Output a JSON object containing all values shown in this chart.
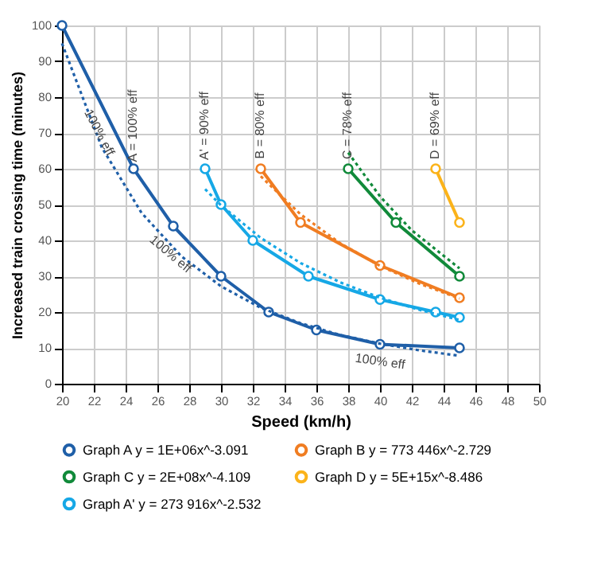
{
  "chart_data": {
    "type": "line",
    "xlabel": "Speed (km/h)",
    "ylabel": "Increased train crossing time (minutes)",
    "xlim": [
      20,
      50
    ],
    "xticks": [
      20,
      22,
      24,
      26,
      28,
      30,
      32,
      34,
      36,
      38,
      40,
      42,
      44,
      46,
      48,
      50
    ],
    "ylim": [
      0,
      100
    ],
    "yticks": [
      0,
      10,
      20,
      30,
      40,
      50,
      60,
      70,
      80,
      90,
      100
    ],
    "grid": true,
    "legend": "bottom",
    "marker": "circle",
    "line_style": "solid",
    "series": [
      {
        "name": "Graph A  y = 1E+06x^-3.091",
        "color": "#1f5fa8",
        "x": [
          20,
          24.5,
          27,
          30,
          33,
          36,
          40,
          45
        ],
        "values": [
          100,
          60,
          44,
          30,
          20,
          15,
          11,
          10
        ]
      },
      {
        "name": "Graph B  y = 773 446x^-2.729",
        "color": "#f07d22",
        "x": [
          32.5,
          35,
          40,
          45
        ],
        "values": [
          60,
          45,
          33,
          24
        ]
      },
      {
        "name": "Graph C  y = 2E+08x^-4.109",
        "color": "#118a3a",
        "x": [
          38,
          41,
          45
        ],
        "values": [
          60,
          45,
          30
        ]
      },
      {
        "name": "Graph D  y = 5E+15x^-8.486",
        "color": "#fbb31a",
        "x": [
          43.5,
          45
        ],
        "values": [
          60,
          45
        ]
      },
      {
        "name": "Graph A'  y = 273 916x^-2.532",
        "color": "#16a8e6",
        "x": [
          29,
          30,
          32,
          35.5,
          40,
          43.5,
          45
        ],
        "values": [
          60,
          50,
          40,
          30,
          23.5,
          20,
          18.5
        ]
      },
      {
        "type": "line",
        "color": "#1f5fa8",
        "marker": "none",
        "line_style": "dotted",
        "x": [
          20,
          22.5,
          25,
          27.5,
          30,
          32.5,
          35,
          37.5,
          40,
          42.5,
          45
        ],
        "values": [
          95,
          66,
          47.7,
          35.6,
          27.2,
          21.2,
          16.9,
          13.6,
          11.2,
          9.3,
          7.8
        ]
      },
      {
        "type": "line",
        "color": "#16a8e6",
        "marker": "none",
        "line_style": "dotted",
        "x": [
          29,
          30,
          32.5,
          35,
          37.5,
          40,
          42.5,
          45
        ],
        "values": [
          54.3,
          49.8,
          40.7,
          33.7,
          28.3,
          24,
          20.6,
          17.8
        ]
      },
      {
        "type": "line",
        "color": "#f07d22",
        "marker": "none",
        "line_style": "dotted",
        "x": [
          32.5,
          35,
          37.5,
          40,
          42.5,
          45
        ],
        "values": [
          57.9,
          47.3,
          39.2,
          32.9,
          27.9,
          23.8
        ]
      },
      {
        "type": "line",
        "color": "#118a3a",
        "marker": "none",
        "line_style": "dotted",
        "x": [
          38,
          40,
          42,
          45
        ],
        "values": [
          64.5,
          52.3,
          42.8,
          32.2
        ]
      }
    ],
    "annotations": [
      "100% eff",
      "A = 100% eff",
      "A' = 90% eff",
      "B = 80% eff",
      "C = 78% eff",
      "D = 69% eff",
      "100% eff",
      "100% eff"
    ]
  }
}
